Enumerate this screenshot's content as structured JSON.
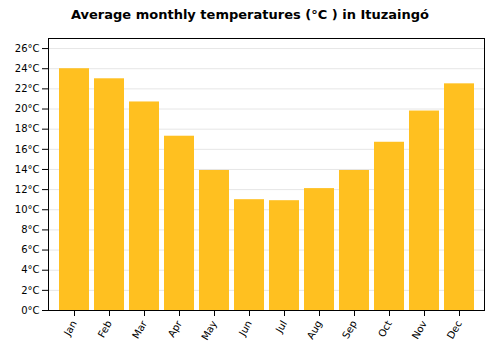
{
  "chart_data": {
    "type": "bar",
    "title": "Average monthly temperatures (°C ) in Ituzaingó",
    "categories": [
      "Jan",
      "Feb",
      "Mar",
      "Apr",
      "May",
      "Jun",
      "Jul",
      "Aug",
      "Sep",
      "Oct",
      "Nov",
      "Dec"
    ],
    "values": [
      24.0,
      23.0,
      20.7,
      17.3,
      13.9,
      11.0,
      10.9,
      12.1,
      13.9,
      16.7,
      19.8,
      22.5
    ],
    "color": "#FFC020",
    "ylim": [
      0,
      27
    ],
    "yticks": [
      {
        "value": 0,
        "label": "0°C"
      },
      {
        "value": 2,
        "label": "2°C"
      },
      {
        "value": 4,
        "label": "4°C"
      },
      {
        "value": 6,
        "label": "6°C"
      },
      {
        "value": 8,
        "label": "8°C"
      },
      {
        "value": 10,
        "label": "10°C"
      },
      {
        "value": 12,
        "label": "12°C"
      },
      {
        "value": 14,
        "label": "14°C"
      },
      {
        "value": 16,
        "label": "16°C"
      },
      {
        "value": 18,
        "label": "18°C"
      },
      {
        "value": 20,
        "label": "20°C"
      },
      {
        "value": 22,
        "label": "22°C"
      },
      {
        "value": 24,
        "label": "24°C"
      },
      {
        "value": 26,
        "label": "26°C"
      }
    ],
    "grid": true
  }
}
